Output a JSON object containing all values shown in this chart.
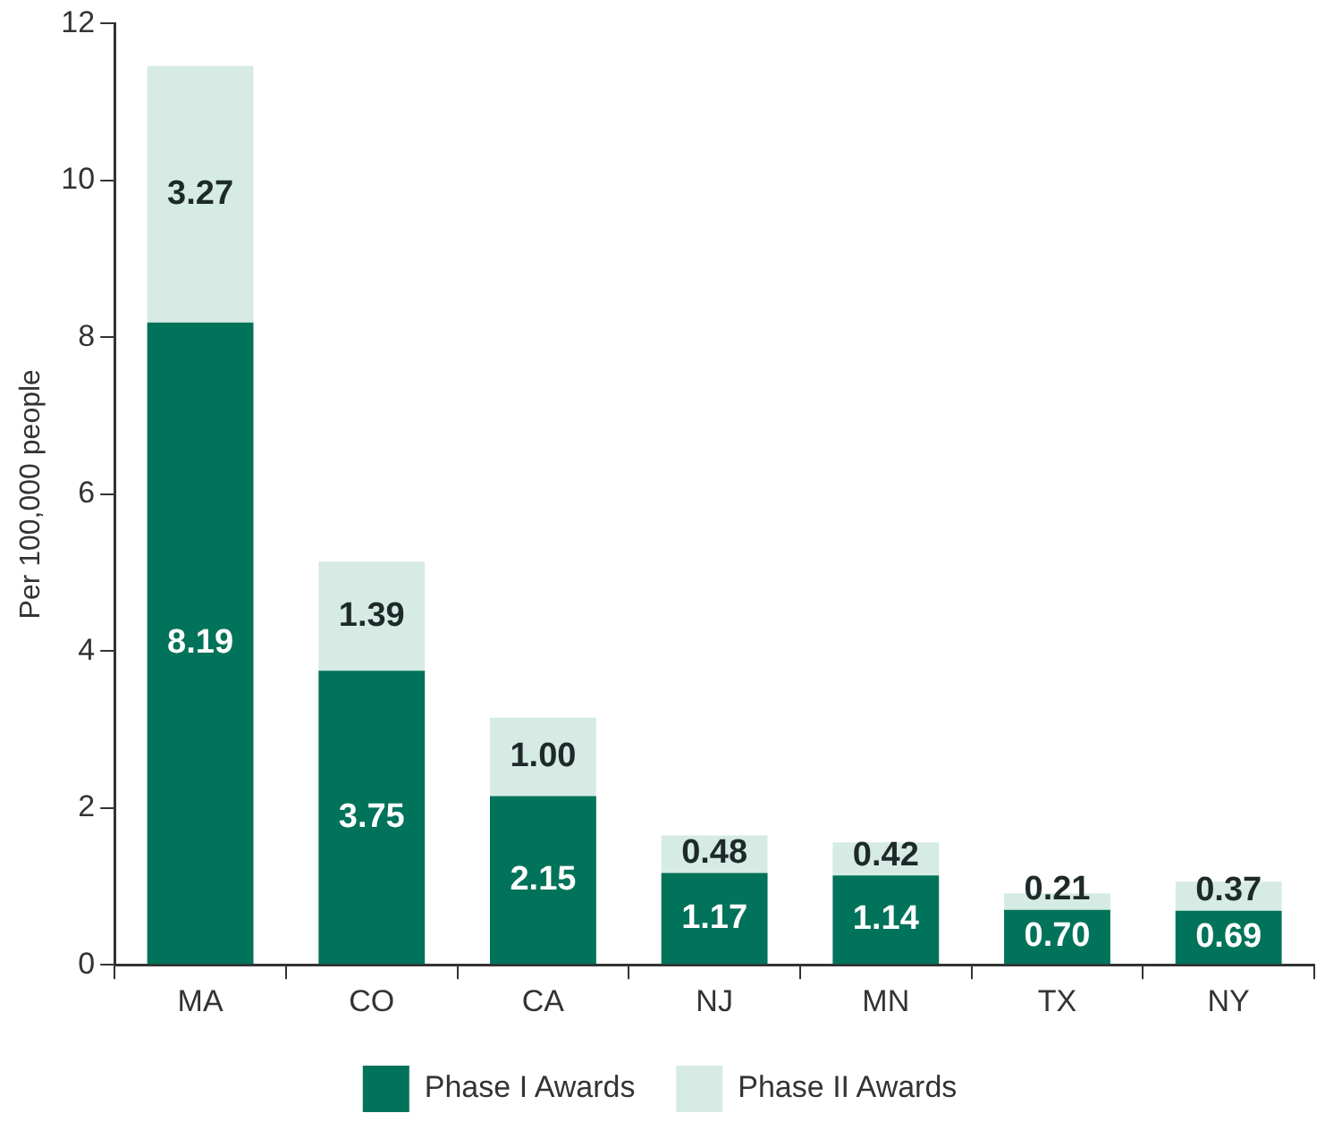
{
  "chart_data": {
    "type": "bar",
    "ylabel": "Per 100,000 people",
    "categories": [
      "MA",
      "CO",
      "CA",
      "NJ",
      "MN",
      "TX",
      "NY"
    ],
    "stacked": true,
    "series": [
      {
        "name": "Phase I Awards",
        "color": "#00735a",
        "values": [
          8.19,
          3.75,
          2.15,
          1.17,
          1.14,
          0.7,
          0.69
        ],
        "value_labels": [
          "8.19",
          "3.75",
          "2.15",
          "1.17",
          "1.14",
          "0.70",
          "0.69"
        ]
      },
      {
        "name": "Phase II Awards",
        "color": "#d5ebe3",
        "values": [
          3.27,
          1.39,
          1.0,
          0.48,
          0.42,
          0.21,
          0.37
        ],
        "value_labels": [
          "3.27",
          "1.39",
          "1.00",
          "0.48",
          "0.42",
          "0.21",
          "0.37"
        ]
      }
    ],
    "ylim": [
      0,
      12
    ],
    "yticks": [
      0,
      2,
      4,
      6,
      8,
      10,
      12
    ],
    "grid": false,
    "legend": "bottom"
  }
}
